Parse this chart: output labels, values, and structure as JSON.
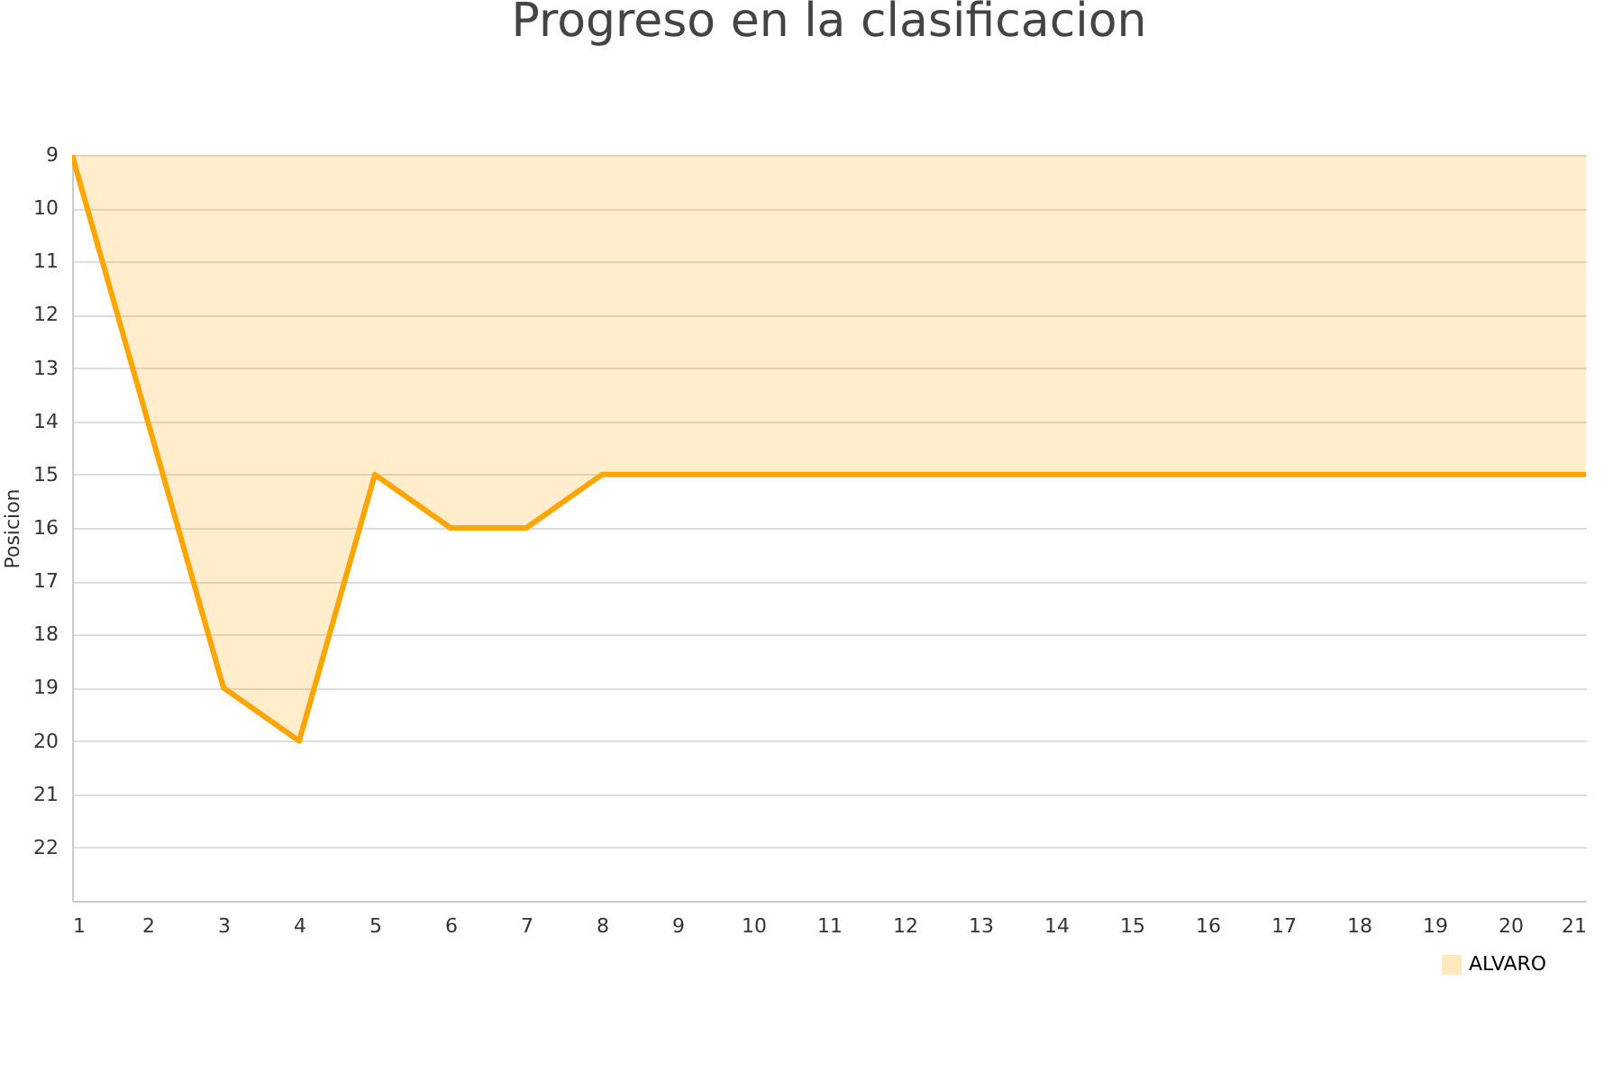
{
  "chart_data": {
    "type": "area",
    "title": "Progreso en la clasificacion",
    "ylabel": "Posicion",
    "x": [
      1,
      2,
      3,
      4,
      5,
      6,
      7,
      8,
      9,
      10,
      11,
      12,
      13,
      14,
      15,
      16,
      17,
      18,
      19,
      20,
      21
    ],
    "series": [
      {
        "name": "ALVARO",
        "color": "#ffa500",
        "values": [
          9,
          14,
          19,
          20,
          15,
          16,
          16,
          15,
          15,
          15,
          15,
          15,
          15,
          15,
          15,
          15,
          15,
          15,
          15,
          15,
          15
        ]
      }
    ],
    "xlim": [
      1,
      21
    ],
    "xticks": [
      1,
      2,
      3,
      4,
      5,
      6,
      7,
      8,
      9,
      10,
      11,
      12,
      13,
      14,
      15,
      16,
      17,
      18,
      19,
      20,
      21
    ],
    "ylim": [
      23,
      9
    ],
    "yticks": [
      9,
      10,
      11,
      12,
      13,
      14,
      15,
      16,
      17,
      18,
      19,
      20,
      21,
      22
    ],
    "grid": "y",
    "legend": "bottom right"
  }
}
